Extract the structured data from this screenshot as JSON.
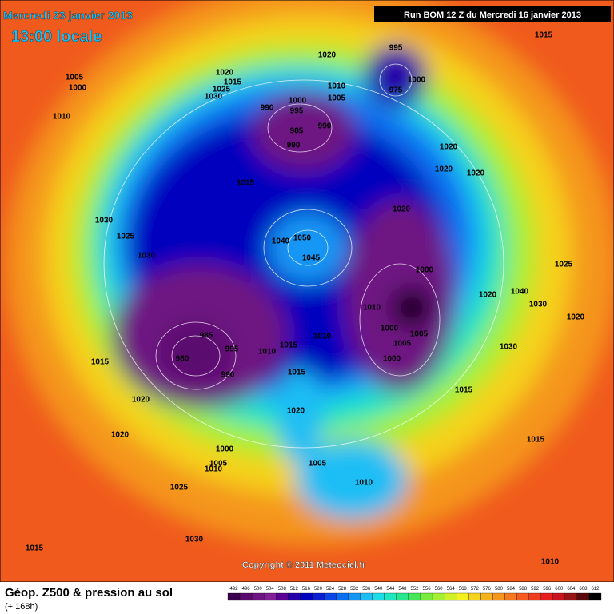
{
  "header": {
    "date": "Mercredi 23 janvier 2013",
    "time": "13:00 locale",
    "run": "Run BOM 12 Z du Mercredi 16 janvier 2013"
  },
  "copyright": "Copyright © 2011 Meteociel.fr",
  "footer": {
    "title": "Géop. Z500 & pression au sol",
    "subtitle": "(+ 168h)"
  },
  "scale": {
    "labels": [
      492,
      496,
      500,
      504,
      508,
      512,
      516,
      520,
      524,
      528,
      532,
      536,
      540,
      544,
      548,
      552,
      556,
      560,
      564,
      568,
      572,
      576,
      580,
      584,
      588,
      592,
      596,
      600,
      604,
      608,
      612
    ],
    "colors": [
      "#3c0050",
      "#5a0a6e",
      "#6e1482",
      "#821e96",
      "#5a0096",
      "#2800aa",
      "#0000be",
      "#0a1ed2",
      "#0a46e6",
      "#0a6ef0",
      "#1496f5",
      "#1ebef5",
      "#1edce6",
      "#1ee6be",
      "#28e68c",
      "#46e65a",
      "#78eb3c",
      "#a5f032",
      "#d2f028",
      "#f5f01e",
      "#f5d21e",
      "#f5b41e",
      "#f5961e",
      "#f5781e",
      "#f55a1e",
      "#f03c1e",
      "#e61e1e",
      "#c8141e",
      "#961414",
      "#5a0a0a",
      "#000000"
    ]
  },
  "isobars": [
    "1015",
    "1005",
    "1000",
    "1010",
    "1020",
    "1015",
    "1025",
    "1030",
    "1020",
    "995",
    "1000",
    "975",
    "1010",
    "1005",
    "1000",
    "995",
    "990",
    "985",
    "990",
    "990",
    "1020",
    "1020",
    "1020",
    "1015",
    "1020",
    "1030",
    "1025",
    "1030",
    "1050",
    "1040",
    "1045",
    "1000",
    "1025",
    "1020",
    "1040",
    "1030",
    "1020",
    "1010",
    "985",
    "1010",
    "1015",
    "1000",
    "1005",
    "1005",
    "995",
    "1010",
    "1000",
    "1030",
    "1015",
    "980",
    "990",
    "1015",
    "1015",
    "1020",
    "1020",
    "1020",
    "1015",
    "1000",
    "1005",
    "1010",
    "1005",
    "1010",
    "1025",
    "1030",
    "1015",
    "1010"
  ]
}
